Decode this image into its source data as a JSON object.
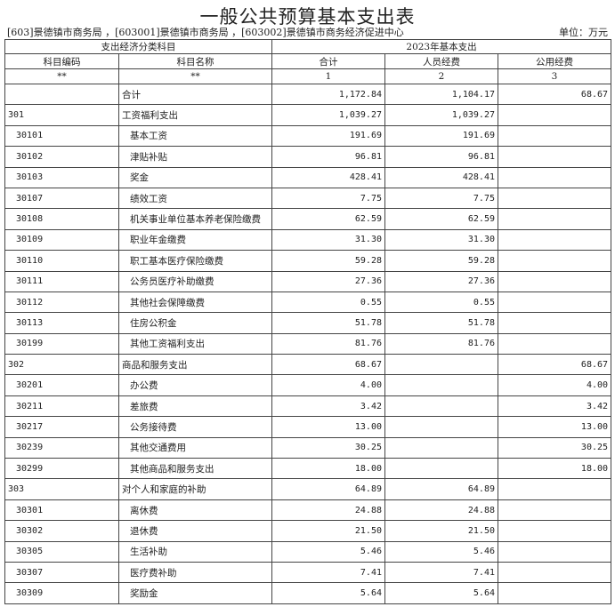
{
  "title": "一般公共预算基本支出表",
  "subtitle": "[603]景德镇市商务局 ，[603001]景德镇市商务局 ，[603002]景德镇市商务经济促进中心",
  "unit": "单位：万元",
  "header": {
    "group_left": "支出经济分类科目",
    "group_right": "2023年基本支出",
    "columns": [
      "科目编码",
      "科目名称",
      "合计",
      "人员经费",
      "公用经费"
    ],
    "index_row": [
      "**",
      "**",
      "1",
      "2",
      "3"
    ]
  },
  "rows": [
    {
      "code": "",
      "name": "合计",
      "total": "1,172.84",
      "personnel": "1,104.17",
      "public": "68.67",
      "level": 0
    },
    {
      "code": "301",
      "name": "工资福利支出",
      "total": "1,039.27",
      "personnel": "1,039.27",
      "public": "",
      "level": 0
    },
    {
      "code": "30101",
      "name": "基本工资",
      "total": "191.69",
      "personnel": "191.69",
      "public": "",
      "level": 1
    },
    {
      "code": "30102",
      "name": "津贴补贴",
      "total": "96.81",
      "personnel": "96.81",
      "public": "",
      "level": 1
    },
    {
      "code": "30103",
      "name": "奖金",
      "total": "428.41",
      "personnel": "428.41",
      "public": "",
      "level": 1
    },
    {
      "code": "30107",
      "name": "绩效工资",
      "total": "7.75",
      "personnel": "7.75",
      "public": "",
      "level": 1
    },
    {
      "code": "30108",
      "name": "机关事业单位基本养老保险缴费",
      "total": "62.59",
      "personnel": "62.59",
      "public": "",
      "level": 1
    },
    {
      "code": "30109",
      "name": "职业年金缴费",
      "total": "31.30",
      "personnel": "31.30",
      "public": "",
      "level": 1
    },
    {
      "code": "30110",
      "name": "职工基本医疗保险缴费",
      "total": "59.28",
      "personnel": "59.28",
      "public": "",
      "level": 1
    },
    {
      "code": "30111",
      "name": "公务员医疗补助缴费",
      "total": "27.36",
      "personnel": "27.36",
      "public": "",
      "level": 1
    },
    {
      "code": "30112",
      "name": "其他社会保障缴费",
      "total": "0.55",
      "personnel": "0.55",
      "public": "",
      "level": 1
    },
    {
      "code": "30113",
      "name": "住房公积金",
      "total": "51.78",
      "personnel": "51.78",
      "public": "",
      "level": 1
    },
    {
      "code": "30199",
      "name": "其他工资福利支出",
      "total": "81.76",
      "personnel": "81.76",
      "public": "",
      "level": 1
    },
    {
      "code": "302",
      "name": "商品和服务支出",
      "total": "68.67",
      "personnel": "",
      "public": "68.67",
      "level": 0
    },
    {
      "code": "30201",
      "name": "办公费",
      "total": "4.00",
      "personnel": "",
      "public": "4.00",
      "level": 1
    },
    {
      "code": "30211",
      "name": "差旅费",
      "total": "3.42",
      "personnel": "",
      "public": "3.42",
      "level": 1
    },
    {
      "code": "30217",
      "name": "公务接待费",
      "total": "13.00",
      "personnel": "",
      "public": "13.00",
      "level": 1
    },
    {
      "code": "30239",
      "name": "其他交通费用",
      "total": "30.25",
      "personnel": "",
      "public": "30.25",
      "level": 1
    },
    {
      "code": "30299",
      "name": "其他商品和服务支出",
      "total": "18.00",
      "personnel": "",
      "public": "18.00",
      "level": 1
    },
    {
      "code": "303",
      "name": "对个人和家庭的补助",
      "total": "64.89",
      "personnel": "64.89",
      "public": "",
      "level": 0
    },
    {
      "code": "30301",
      "name": "离休费",
      "total": "24.88",
      "personnel": "24.88",
      "public": "",
      "level": 1
    },
    {
      "code": "30302",
      "name": "退休费",
      "total": "21.50",
      "personnel": "21.50",
      "public": "",
      "level": 1
    },
    {
      "code": "30305",
      "name": "生活补助",
      "total": "5.46",
      "personnel": "5.46",
      "public": "",
      "level": 1
    },
    {
      "code": "30307",
      "name": "医疗费补助",
      "total": "7.41",
      "personnel": "7.41",
      "public": "",
      "level": 1
    },
    {
      "code": "30309",
      "name": "奖励金",
      "total": "5.64",
      "personnel": "5.64",
      "public": "",
      "level": 1
    }
  ]
}
